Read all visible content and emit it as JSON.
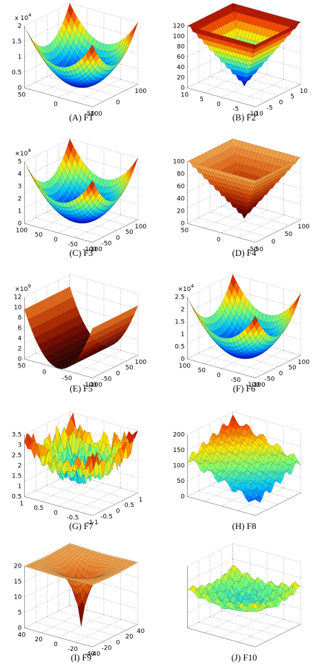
{
  "figure": {
    "panels": [
      {
        "caption": "(A) F1",
        "multiplier": {
          "base": "x 10",
          "exp": "4"
        },
        "z_ticks": [
          2,
          1.5,
          1,
          0.5,
          0
        ],
        "x_ticks": [
          50,
          0,
          -50
        ],
        "y_ticks": [
          -100,
          0,
          100
        ]
      },
      {
        "caption": "(B) F2",
        "z_ticks": [
          120,
          100,
          80,
          60,
          40,
          20,
          0
        ],
        "x_ticks": [
          10,
          5,
          0,
          -5,
          -10
        ],
        "y_ticks": [
          -10,
          -5,
          0,
          5,
          10
        ]
      },
      {
        "caption": "(C) F3",
        "multiplier": {
          "base": "×10",
          "exp": "4"
        },
        "z_ticks": [
          5,
          4,
          3,
          2,
          1,
          0
        ],
        "x_ticks": [
          100,
          50,
          0,
          -50,
          -100
        ],
        "y_ticks": [
          -100,
          -50,
          0,
          50,
          100
        ]
      },
      {
        "caption": "(D) F4",
        "z_ticks": [
          100,
          80,
          60,
          40,
          20,
          0
        ],
        "x_ticks": [
          50,
          0,
          -50
        ],
        "y_ticks": [
          -50,
          0,
          50,
          100
        ]
      },
      {
        "caption": "(E) F5",
        "multiplier": {
          "base": "×10",
          "exp": "9"
        },
        "z_ticks": [
          12,
          10,
          8,
          6,
          4,
          2,
          0
        ],
        "x_ticks": [
          50,
          0,
          -50,
          -100
        ],
        "y_ticks": [
          -100,
          -50,
          0,
          50,
          100
        ]
      },
      {
        "caption": "(F) F6",
        "multiplier": {
          "base": "×10",
          "exp": "4"
        },
        "z_ticks": [
          2.5,
          2,
          1.5,
          1,
          0.5,
          0
        ],
        "x_ticks": [
          100,
          50,
          0,
          -50,
          -100
        ],
        "y_ticks": [
          -100,
          -50,
          0,
          50,
          100
        ]
      },
      {
        "caption": "(G) F7",
        "z_ticks": [
          3.5,
          3,
          2.5,
          2,
          1.5,
          1,
          0.5
        ],
        "x_ticks": [
          1,
          0.5,
          0,
          -0.5,
          -1
        ],
        "y_ticks": [
          -1,
          -0.5,
          0,
          0.5,
          1
        ]
      },
      {
        "caption": "(H) F8",
        "z_ticks": [
          200,
          150,
          100,
          50,
          0
        ],
        "x_ticks": [],
        "y_ticks": []
      },
      {
        "caption": "(I) F9",
        "z_ticks": [
          20,
          15,
          10,
          5,
          0
        ],
        "x_ticks": [
          40,
          20,
          0,
          -20,
          -40
        ],
        "y_ticks": [
          -40,
          -20,
          0,
          20,
          40
        ]
      },
      {
        "caption": "(J) F10",
        "z_ticks": [],
        "x_ticks": [],
        "y_ticks": []
      }
    ]
  }
}
